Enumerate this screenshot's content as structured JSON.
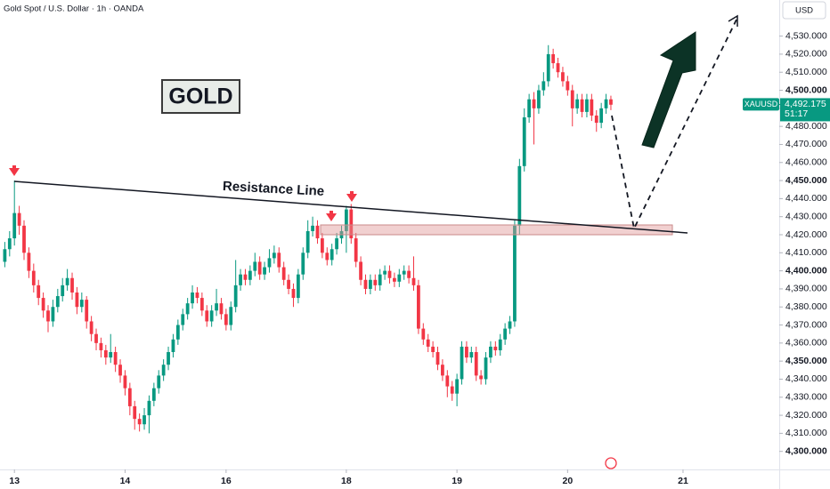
{
  "chart_data": {
    "type": "candlestick",
    "title": "Gold Spot / U.S. Dollar · 1h · OANDA",
    "annotations": {
      "badge": "GOLD",
      "line_label": "Resistance Line"
    },
    "currency": "USD",
    "symbol": "XAUUSD",
    "last_price": {
      "value": 4492.175,
      "label": "4,492.175"
    },
    "countdown": "51:17",
    "up_color": "#089981",
    "down_color": "#f23645",
    "xlim": [
      -1,
      161
    ],
    "xticks": [
      {
        "value": 2,
        "label": "13"
      },
      {
        "value": 25,
        "label": "14"
      },
      {
        "value": 46,
        "label": "16"
      },
      {
        "value": 71,
        "label": "18"
      },
      {
        "value": 94,
        "label": "19"
      },
      {
        "value": 117,
        "label": "20"
      },
      {
        "value": 141,
        "label": "21"
      }
    ],
    "ylim": [
      4290,
      4550
    ],
    "yticks": [
      {
        "value": 4300,
        "label": "4,300.000"
      },
      {
        "value": 4310,
        "label": "4,310.000"
      },
      {
        "value": 4320,
        "label": "4,320.000"
      },
      {
        "value": 4330,
        "label": "4,330.000"
      },
      {
        "value": 4340,
        "label": "4,340.000"
      },
      {
        "value": 4350,
        "label": "4,350.000"
      },
      {
        "value": 4360,
        "label": "4,360.000"
      },
      {
        "value": 4370,
        "label": "4,370.000"
      },
      {
        "value": 4380,
        "label": "4,380.000"
      },
      {
        "value": 4390,
        "label": "4,390.000"
      },
      {
        "value": 4400,
        "label": "4,400.000"
      },
      {
        "value": 4410,
        "label": "4,410.000"
      },
      {
        "value": 4420,
        "label": "4,420.000"
      },
      {
        "value": 4430,
        "label": "4,430.000"
      },
      {
        "value": 4440,
        "label": "4,440.000"
      },
      {
        "value": 4450,
        "label": "4,450.000"
      },
      {
        "value": 4460,
        "label": "4,460.000"
      },
      {
        "value": 4470,
        "label": "4,470.000"
      },
      {
        "value": 4480,
        "label": "4,480.000"
      },
      {
        "value": 4490,
        "label": "4,490.000"
      },
      {
        "value": 4500,
        "label": "4,500.000"
      },
      {
        "value": 4510,
        "label": "4,510.000"
      },
      {
        "value": 4520,
        "label": "4,520.000"
      },
      {
        "value": 4530,
        "label": "4,530.000"
      }
    ],
    "candles": [
      [
        4405,
        4416,
        4402,
        4412
      ],
      [
        4412,
        4422,
        4408,
        4418
      ],
      [
        4418,
        4450,
        4414,
        4432
      ],
      [
        4432,
        4436,
        4420,
        4425
      ],
      [
        4425,
        4428,
        4406,
        4410
      ],
      [
        4410,
        4413,
        4396,
        4400
      ],
      [
        4400,
        4404,
        4388,
        4392
      ],
      [
        4392,
        4395,
        4381,
        4385
      ],
      [
        4385,
        4388,
        4374,
        4378
      ],
      [
        4378,
        4381,
        4366,
        4372
      ],
      [
        4372,
        4384,
        4369,
        4380
      ],
      [
        4380,
        4390,
        4377,
        4386
      ],
      [
        4386,
        4396,
        4383,
        4392
      ],
      [
        4392,
        4401,
        4389,
        4396
      ],
      [
        4396,
        4399,
        4384,
        4388
      ],
      [
        4388,
        4391,
        4376,
        4380
      ],
      [
        4380,
        4388,
        4377,
        4384
      ],
      [
        4384,
        4386,
        4368,
        4372
      ],
      [
        4372,
        4375,
        4361,
        4365
      ],
      [
        4365,
        4368,
        4356,
        4360
      ],
      [
        4360,
        4363,
        4352,
        4356
      ],
      [
        4356,
        4359,
        4348,
        4352
      ],
      [
        4352,
        4365,
        4349,
        4355
      ],
      [
        4355,
        4358,
        4344,
        4348
      ],
      [
        4348,
        4351,
        4338,
        4342
      ],
      [
        4342,
        4345,
        4331,
        4335
      ],
      [
        4335,
        4338,
        4320,
        4325
      ],
      [
        4325,
        4328,
        4312,
        4318
      ],
      [
        4318,
        4321,
        4311,
        4315
      ],
      [
        4315,
        4324,
        4312,
        4320
      ],
      [
        4320,
        4331,
        4310,
        4328
      ],
      [
        4328,
        4338,
        4325,
        4335
      ],
      [
        4335,
        4345,
        4332,
        4342
      ],
      [
        4342,
        4351,
        4339,
        4348
      ],
      [
        4348,
        4358,
        4345,
        4355
      ],
      [
        4355,
        4365,
        4352,
        4362
      ],
      [
        4362,
        4373,
        4359,
        4370
      ],
      [
        4370,
        4379,
        4367,
        4376
      ],
      [
        4376,
        4385,
        4373,
        4382
      ],
      [
        4382,
        4392,
        4379,
        4388
      ],
      [
        4388,
        4391,
        4382,
        4385
      ],
      [
        4385,
        4388,
        4375,
        4378
      ],
      [
        4378,
        4381,
        4369,
        4372
      ],
      [
        4372,
        4381,
        4369,
        4378
      ],
      [
        4378,
        4390,
        4375,
        4382
      ],
      [
        4382,
        4385,
        4373,
        4376
      ],
      [
        4376,
        4379,
        4367,
        4370
      ],
      [
        4370,
        4383,
        4367,
        4380
      ],
      [
        4380,
        4406,
        4377,
        4392
      ],
      [
        4392,
        4401,
        4389,
        4398
      ],
      [
        4398,
        4401,
        4392,
        4395
      ],
      [
        4395,
        4403,
        4392,
        4400
      ],
      [
        4400,
        4410,
        4397,
        4405
      ],
      [
        4405,
        4408,
        4395,
        4398
      ],
      [
        4398,
        4405,
        4395,
        4402
      ],
      [
        4402,
        4412,
        4399,
        4407
      ],
      [
        4407,
        4414,
        4404,
        4410
      ],
      [
        4410,
        4413,
        4399,
        4402
      ],
      [
        4402,
        4405,
        4392,
        4395
      ],
      [
        4395,
        4398,
        4387,
        4390
      ],
      [
        4390,
        4393,
        4380,
        4385
      ],
      [
        4385,
        4401,
        4382,
        4398
      ],
      [
        4398,
        4413,
        4395,
        4410
      ],
      [
        4410,
        4428,
        4407,
        4422
      ],
      [
        4422,
        4430,
        4419,
        4425
      ],
      [
        4425,
        4428,
        4415,
        4418
      ],
      [
        4418,
        4421,
        4407,
        4410
      ],
      [
        4410,
        4413,
        4403,
        4406
      ],
      [
        4406,
        4415,
        4403,
        4412
      ],
      [
        4412,
        4421,
        4409,
        4418
      ],
      [
        4418,
        4425,
        4415,
        4422
      ],
      [
        4422,
        4436,
        4410,
        4434
      ],
      [
        4434,
        4437,
        4415,
        4418
      ],
      [
        4418,
        4421,
        4402,
        4405
      ],
      [
        4405,
        4408,
        4392,
        4395
      ],
      [
        4395,
        4398,
        4387,
        4390
      ],
      [
        4390,
        4398,
        4387,
        4395
      ],
      [
        4395,
        4398,
        4389,
        4392
      ],
      [
        4392,
        4401,
        4389,
        4398
      ],
      [
        4398,
        4403,
        4395,
        4400
      ],
      [
        4400,
        4403,
        4393,
        4396
      ],
      [
        4396,
        4399,
        4391,
        4394
      ],
      [
        4394,
        4401,
        4391,
        4398
      ],
      [
        4398,
        4403,
        4395,
        4400
      ],
      [
        4400,
        4403,
        4393,
        4396
      ],
      [
        4396,
        4408,
        4389,
        4392
      ],
      [
        4392,
        4395,
        4365,
        4368
      ],
      [
        4368,
        4371,
        4359,
        4362
      ],
      [
        4362,
        4365,
        4355,
        4358
      ],
      [
        4358,
        4361,
        4352,
        4355
      ],
      [
        4355,
        4358,
        4345,
        4348
      ],
      [
        4348,
        4351,
        4339,
        4342
      ],
      [
        4342,
        4345,
        4330,
        4336
      ],
      [
        4336,
        4339,
        4328,
        4332
      ],
      [
        4332,
        4343,
        4325,
        4340
      ],
      [
        4340,
        4361,
        4337,
        4358
      ],
      [
        4358,
        4361,
        4349,
        4352
      ],
      [
        4352,
        4358,
        4349,
        4355
      ],
      [
        4355,
        4358,
        4339,
        4342
      ],
      [
        4342,
        4345,
        4337,
        4340
      ],
      [
        4340,
        4355,
        4337,
        4352
      ],
      [
        4352,
        4361,
        4349,
        4358
      ],
      [
        4358,
        4361,
        4353,
        4356
      ],
      [
        4356,
        4365,
        4353,
        4362
      ],
      [
        4362,
        4371,
        4359,
        4368
      ],
      [
        4368,
        4375,
        4365,
        4372
      ],
      [
        4372,
        4428,
        4369,
        4425
      ],
      [
        4425,
        4462,
        4420,
        4458
      ],
      [
        4458,
        4490,
        4455,
        4485
      ],
      [
        4485,
        4498,
        4482,
        4495
      ],
      [
        4495,
        4499,
        4470,
        4490
      ],
      [
        4490,
        4503,
        4487,
        4500
      ],
      [
        4500,
        4510,
        4497,
        4505
      ],
      [
        4505,
        4525,
        4502,
        4520
      ],
      [
        4520,
        4523,
        4512,
        4515
      ],
      [
        4515,
        4518,
        4507,
        4510
      ],
      [
        4510,
        4513,
        4502,
        4505
      ],
      [
        4505,
        4508,
        4497,
        4500
      ],
      [
        4500,
        4503,
        4480,
        4490
      ],
      [
        4490,
        4498,
        4487,
        4495
      ],
      [
        4495,
        4498,
        4485,
        4488
      ],
      [
        4488,
        4498,
        4485,
        4495
      ],
      [
        4495,
        4498,
        4483,
        4486
      ],
      [
        4486,
        4489,
        4477,
        4482
      ],
      [
        4482,
        4493,
        4479,
        4490
      ],
      [
        4490,
        4498,
        4487,
        4495
      ],
      [
        4495,
        4497,
        4489,
        4492
      ]
    ]
  }
}
